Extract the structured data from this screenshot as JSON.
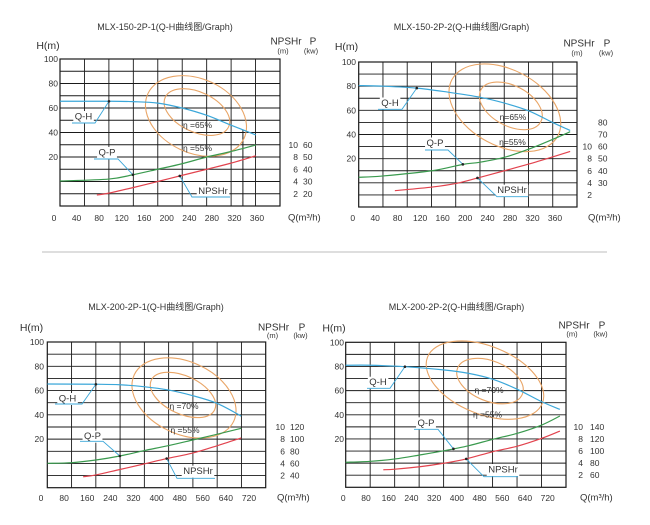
{
  "colors": {
    "q_h": "#3ba7d9",
    "q_p": "#3a9a4e",
    "npshr": "#e2434e",
    "efficiency": "#e9a566",
    "grid": "#1a1a1a",
    "leader": "#3ba7d9",
    "divider": "#bdbdbd"
  },
  "chart_data": [
    {
      "type": "line",
      "title": "MLX-150-2P-1(Q-H曲线图/Graph)",
      "xlabel": "Q(m³/h)",
      "ylabel": "H(m)",
      "npshr_label": "NPSHr",
      "npshr_unit": "(m)",
      "power_label": "P",
      "power_unit": "(kw)",
      "x_ticks": [
        0,
        40,
        80,
        120,
        160,
        200,
        240,
        280,
        320,
        360
      ],
      "y_ticks": [
        100,
        80,
        60,
        40,
        20
      ],
      "npshr_ticks": [
        2,
        4,
        6,
        8,
        10
      ],
      "power_ticks": [
        20,
        30,
        40,
        50,
        60
      ],
      "xlim": [
        10,
        400
      ],
      "ylim": [
        -20,
        100
      ],
      "npshr_lim": [
        0,
        24
      ],
      "power_lim": [
        10,
        130
      ],
      "grid": true,
      "series": [
        {
          "name": "Q-H",
          "axis": "H",
          "label_q": 97.5,
          "points": [
            [
              10.6,
              65.5
            ],
            [
              97,
              65.5
            ],
            [
              140,
              65.2
            ],
            [
              184,
              64
            ],
            [
              227,
              60
            ],
            [
              271,
              54
            ],
            [
              314,
              46
            ],
            [
              358,
              38
            ]
          ]
        },
        {
          "name": "Q-P",
          "axis": "P",
          "label_q": 140,
          "points": [
            [
              10.6,
              30.4
            ],
            [
              97,
              32
            ],
            [
              140,
              35.5
            ],
            [
              184,
              40
            ],
            [
              227,
              44.5
            ],
            [
              271,
              50
            ],
            [
              314,
              54.5
            ],
            [
              358,
              59.8
            ]
          ]
        },
        {
          "name": "NPSHr",
          "axis": "NPSHr",
          "label_q": 223,
          "points": [
            [
              76,
              1.8
            ],
            [
              97.5,
              2.1
            ],
            [
              140,
              3
            ],
            [
              184,
              4
            ],
            [
              227,
              5
            ],
            [
              271,
              6
            ],
            [
              314,
              7
            ],
            [
              358,
              8.2
            ]
          ]
        }
      ],
      "efficiency": [
        {
          "label": "η =65%",
          "center": [
            253.5,
            56.7
          ],
          "radius": [
            62,
            16.3
          ]
        },
        {
          "label": "η =55%",
          "center": [
            251.8,
            53.5
          ],
          "radius": [
            94,
            30.2
          ]
        }
      ],
      "rated_q": 335
    },
    {
      "type": "line",
      "title": "MLX-150-2P-2(Q-H曲线图/Graph)",
      "xlabel": "Q(m³/h)",
      "ylabel": "H(m)",
      "npshr_label": "NPSHr",
      "npshr_unit": "(m)",
      "power_label": "P",
      "power_unit": "(kw)",
      "x_ticks": [
        0,
        40,
        80,
        120,
        160,
        200,
        240,
        280,
        320,
        360
      ],
      "y_ticks": [
        100,
        80,
        60,
        40,
        20
      ],
      "npshr_ticks": [
        2,
        4,
        6,
        8,
        10
      ],
      "power_ticks": [
        30,
        40,
        50,
        60,
        70,
        80
      ],
      "xlim": [
        10,
        400
      ],
      "ylim": [
        -20,
        100
      ],
      "npshr_lim": [
        0,
        24
      ],
      "power_lim": [
        10,
        130
      ],
      "grid": true,
      "series": [
        {
          "name": "Q-H",
          "axis": "H",
          "label_q": 114,
          "points": [
            [
              10.7,
              80.5
            ],
            [
              54,
              80
            ],
            [
              114,
              78.4
            ],
            [
              170,
              75
            ],
            [
              226,
              70.9
            ],
            [
              270,
              66
            ],
            [
              313,
              59.6
            ],
            [
              356,
              49.9
            ],
            [
              387,
              43.3
            ]
          ]
        },
        {
          "name": "Q-P",
          "axis": "P",
          "label_q": 196,
          "points": [
            [
              10.7,
              34.6
            ],
            [
              54,
              35.7
            ],
            [
              141,
              40
            ],
            [
              196,
              45.3
            ],
            [
              226,
              47
            ],
            [
              270,
              51.1
            ],
            [
              313,
              57.8
            ],
            [
              356,
              66
            ],
            [
              387,
              72.3
            ]
          ]
        },
        {
          "name": "NPSHr",
          "axis": "NPSHr",
          "label_q": 222,
          "points": [
            [
              75,
              2.7
            ],
            [
              141,
              3.3
            ],
            [
              184,
              3.9
            ],
            [
              226,
              4.9
            ],
            [
              270,
              6
            ],
            [
              313,
              7.1
            ],
            [
              356,
              8.3
            ],
            [
              387,
              9.2
            ]
          ]
        }
      ],
      "efficiency": [
        {
          "label": "η=65%",
          "center": [
            281.4,
            63.7
          ],
          "radius": [
            60.4,
            16.6
          ]
        },
        {
          "label": "η=55%",
          "center": [
            270.8,
            62.1
          ],
          "radius": [
            106.7,
            31.5
          ]
        }
      ]
    },
    {
      "type": "line",
      "title": "MLX-200-2P-1(Q-H曲线图/Graph)",
      "xlabel": "Q(m³/h)",
      "ylabel": "H(m)",
      "npshr_label": "NPSHr",
      "npshr_unit": "(m)",
      "power_label": "P",
      "power_unit": "(kw)",
      "x_ticks": [
        0,
        80,
        160,
        240,
        320,
        400,
        480,
        560,
        640,
        720
      ],
      "y_ticks": [
        100,
        80,
        60,
        40,
        20
      ],
      "npshr_ticks": [
        2,
        4,
        6,
        8,
        10
      ],
      "power_ticks": [
        40,
        60,
        80,
        100,
        120
      ],
      "xlim": [
        20,
        780
      ],
      "ylim": [
        -20,
        100
      ],
      "npshr_lim": [
        0,
        24
      ],
      "power_lim": [
        20,
        260
      ],
      "grid": true,
      "series": [
        {
          "name": "Q-H",
          "axis": "H",
          "label_q": 190,
          "points": [
            [
              22,
              65.4
            ],
            [
              190,
              65.2
            ],
            [
              273,
              64.8
            ],
            [
              356,
              63.2
            ],
            [
              440,
              60.5
            ],
            [
              525,
              55.8
            ],
            [
              609,
              49.5
            ],
            [
              693,
              39
            ]
          ]
        },
        {
          "name": "Q-P",
          "axis": "P",
          "label_q": 273,
          "points": [
            [
              22,
              60.2
            ],
            [
              106,
              61.2
            ],
            [
              190,
              65.6
            ],
            [
              273,
              72.2
            ],
            [
              356,
              81
            ],
            [
              440,
              89.2
            ],
            [
              525,
              98.6
            ],
            [
              609,
              108
            ],
            [
              693,
              117.9
            ]
          ]
        },
        {
          "name": "NPSHr",
          "axis": "NPSHr",
          "label_q": 435,
          "points": [
            [
              146,
              1.8
            ],
            [
              190,
              2.1
            ],
            [
              273,
              3
            ],
            [
              356,
              3.9
            ],
            [
              435,
              4.8
            ],
            [
              525,
              5.7
            ],
            [
              609,
              6.9
            ],
            [
              693,
              8.2
            ]
          ]
        }
      ],
      "efficiency": [
        {
          "label": "η =70%",
          "center": [
            491.5,
            56.4
          ],
          "radius": [
            121,
            15.6
          ]
        },
        {
          "label": "η =55%",
          "center": [
            495,
            53.9
          ],
          "radius": [
            190,
            29.7
          ]
        }
      ]
    },
    {
      "type": "line",
      "title": "MLX-200-2P-2(Q-H曲线图/Graph)",
      "xlabel": "Q(m³/h)",
      "ylabel": "H(m)",
      "npshr_label": "NPSHr",
      "npshr_unit": "(m)",
      "power_label": "P",
      "power_unit": "(kw)",
      "x_ticks": [
        0,
        80,
        160,
        240,
        320,
        400,
        480,
        560,
        640,
        720
      ],
      "y_ticks": [
        100,
        80,
        60,
        40,
        20
      ],
      "npshr_ticks": [
        2,
        4,
        6,
        8,
        10
      ],
      "power_ticks": [
        60,
        80,
        100,
        120,
        140
      ],
      "xlim": [
        8,
        785
      ],
      "ylim": [
        -20,
        100
      ],
      "npshr_lim": [
        0,
        24
      ],
      "power_lim": [
        40,
        280
      ],
      "grid": true,
      "series": [
        {
          "name": "Q-H",
          "axis": "H",
          "label_q": 217,
          "points": [
            [
              8.5,
              81
            ],
            [
              96.5,
              81
            ],
            [
              217,
              79.8
            ],
            [
              356,
              77.1
            ],
            [
              442,
              74.3
            ],
            [
              527,
              69.4
            ],
            [
              613,
              61.1
            ],
            [
              699,
              50.8
            ],
            [
              763,
              44.5
            ]
          ]
        },
        {
          "name": "Q-P",
          "axis": "P",
          "label_q": 388,
          "points": [
            [
              8.5,
              81.4
            ],
            [
              96.5,
              83
            ],
            [
              182,
              86.9
            ],
            [
              269,
              93.5
            ],
            [
              356,
              100.6
            ],
            [
              442,
              108.9
            ],
            [
              527,
              119.5
            ],
            [
              613,
              129.4
            ],
            [
              699,
              143.1
            ],
            [
              763,
              158
            ]
          ]
        },
        {
          "name": "NPSHr",
          "axis": "NPSHr",
          "label_q": 433,
          "points": [
            [
              141,
              2.9
            ],
            [
              182,
              3
            ],
            [
              269,
              3.4
            ],
            [
              356,
              4
            ],
            [
              433,
              4.7
            ],
            [
              527,
              5.9
            ],
            [
              613,
              6.8
            ],
            [
              699,
              8.1
            ],
            [
              763,
              9.3
            ]
          ]
        }
      ],
      "efficiency": [
        {
          "label": "η =70%",
          "center": [
            516.7,
            67.9
          ],
          "radius": [
            123,
            16.6
          ]
        },
        {
          "label": "η =55%",
          "center": [
            499,
            68.7
          ],
          "radius": [
            218,
            28.1
          ]
        }
      ]
    }
  ]
}
